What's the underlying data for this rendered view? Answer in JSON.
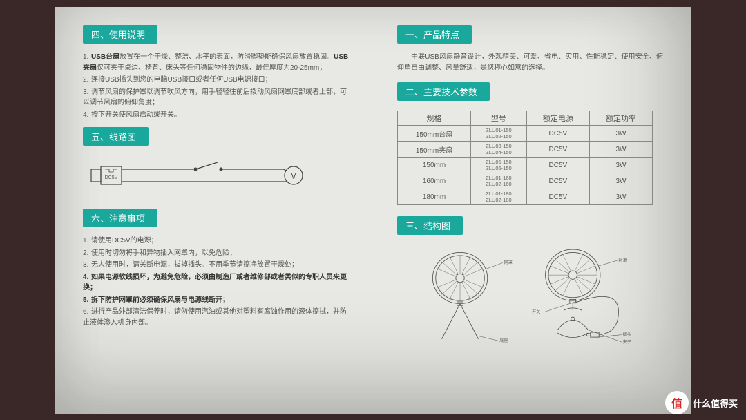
{
  "accent_color": "#1ba89c",
  "paper_bg": "#e8e8e4",
  "left": {
    "sec4": {
      "title": "四、使用说明",
      "items": [
        {
          "num": "1.",
          "pre": "",
          "bold": "USB台扇",
          "mid": "放置在一个干燥、整洁、水平的表面，防滑脚垫能确保风扇放置稳固。",
          "bold2": "USB夹扇",
          "post": "仅可夹于桌边、椅背、床头等任何稳固物件的边缘，最佳厚度为20-25mm；"
        },
        {
          "num": "2.",
          "text": "连接USB插头到您的电脑USB接口或者任何USB电源接口；"
        },
        {
          "num": "3.",
          "text": "调节风扇的保护罩以调节吹风方向，用手轻轻往前后拨动风扇网罩底部或者上部，可以调节风扇的俯仰角度；"
        },
        {
          "num": "4.",
          "text": "按下开关使风扇启动或开关。"
        }
      ]
    },
    "sec5": {
      "title": "五、线路图",
      "dc_label": "DC5V",
      "motor_label": "M"
    },
    "sec6": {
      "title": "六、注意事项",
      "items": [
        {
          "num": "1.",
          "text": "请使用DC5V的电源；",
          "bold": false
        },
        {
          "num": "2.",
          "text": "使用时切勿将手和异物插入网罩内，以免危险；",
          "bold": false
        },
        {
          "num": "3.",
          "text": "无人使用时，请关断电源，拔掉插头。不用季节请擦净放置干燥处；",
          "bold": false
        },
        {
          "num": "4.",
          "text": "如果电源软线损坏，为避免危险，必须由制造厂或者维修部或者类似的专职人员来更换；",
          "bold": true
        },
        {
          "num": "5.",
          "text": "拆下防护网罩前必须确保风扇与电源线断开；",
          "bold": true
        },
        {
          "num": "6.",
          "text": "进行产品外部清洁保养时，请勿使用汽油或其他对塑料有腐蚀作用的液体擦拭，并防止液体渗入机身内部。",
          "bold": false
        }
      ]
    }
  },
  "right": {
    "sec1": {
      "title": "一、产品特点",
      "body": "中联USB风扇静音设计，外观精美、可爱、省电、实用、性能稳定、使用安全、俯仰角自由调整、风量舒适，是您称心如意的选择。"
    },
    "sec2": {
      "title": "二、主要技术参数",
      "headers": [
        "规格",
        "型号",
        "额定电源",
        "额定功率"
      ],
      "rows": [
        {
          "spec": "150mm台扇",
          "models": "ZLU01-150\nZLU02-150",
          "power": "DC5V",
          "watt": "3W"
        },
        {
          "spec": "150mm夹扇",
          "models": "ZLU03-150\nZLU04-150",
          "power": "DC5V",
          "watt": "3W"
        },
        {
          "spec": "150mm",
          "models": "ZLU05-150\nZLU06-150",
          "power": "DC5V",
          "watt": "3W"
        },
        {
          "spec": "160mm",
          "models": "ZLU01-160\nZLU02-160",
          "power": "DC5V",
          "watt": "3W"
        },
        {
          "spec": "180mm",
          "models": "ZLU01-180\nZLU02-180",
          "power": "DC5V",
          "watt": "3W"
        }
      ]
    },
    "sec3": {
      "title": "三、结构图",
      "labels": {
        "guard": "网罩",
        "base": "底座",
        "switch": "开关",
        "plug": "插头",
        "clip": "夹子"
      }
    }
  },
  "watermark": {
    "icon": "值",
    "text": "什么值得买"
  }
}
